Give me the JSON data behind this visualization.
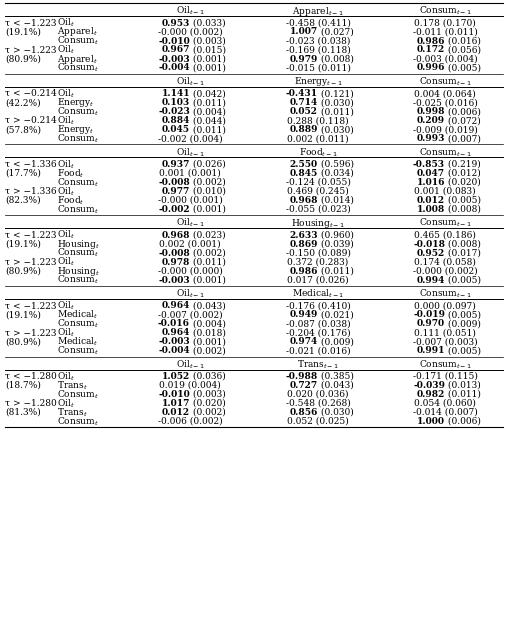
{
  "sections": [
    {
      "col_headers": [
        "Oil$_{t-1}$",
        "Apparel$_{t-1}$",
        "Consum$_{t-1}$"
      ],
      "regimes": [
        {
          "tau": "τ < −1.223",
          "pct": "(19.1%)",
          "rows": [
            {
              "dep": "Oil$_t$",
              "c1": "0.953",
              "s1": "(0.033)",
              "b1": true,
              "c2": "-0.458",
              "s2": "(0.411)",
              "b2": false,
              "c3": "0.178",
              "s3": "(0.170)",
              "b3": false
            },
            {
              "dep": "Apparel$_t$",
              "c1": "-0.000",
              "s1": "(0.002)",
              "b1": false,
              "c2": "1.007",
              "s2": "(0.027)",
              "b2": true,
              "c3": "-0.011",
              "s3": "(0.011)",
              "b3": false
            },
            {
              "dep": "Consum$_t$",
              "c1": "-0.010",
              "s1": "(0.003)",
              "b1": true,
              "c2": "-0.023",
              "s2": "(0.038)",
              "b2": false,
              "c3": "0.986",
              "s3": "(0.016)",
              "b3": true
            }
          ]
        },
        {
          "tau": "τ > −1.223",
          "pct": "(80.9%)",
          "rows": [
            {
              "dep": "Oil$_t$",
              "c1": "0.967",
              "s1": "(0.015)",
              "b1": true,
              "c2": "-0.169",
              "s2": "(0.118)",
              "b2": false,
              "c3": "0.172",
              "s3": "(0.056)",
              "b3": true
            },
            {
              "dep": "Apparel$_t$",
              "c1": "-0.003",
              "s1": "(0.001)",
              "b1": true,
              "c2": "0.979",
              "s2": "(0.008)",
              "b2": true,
              "c3": "-0.003",
              "s3": "(0.004)",
              "b3": false
            },
            {
              "dep": "Consum$_t$",
              "c1": "-0.004",
              "s1": "(0.001)",
              "b1": true,
              "c2": "-0.015",
              "s2": "(0.011)",
              "b2": false,
              "c3": "0.996",
              "s3": "(0.005)",
              "b3": true
            }
          ]
        }
      ]
    },
    {
      "col_headers": [
        "Oil$_{t-1}$",
        "Energy$_{t-1}$",
        "Consum$_{t-1}$"
      ],
      "regimes": [
        {
          "tau": "τ < −0.214",
          "pct": "(42.2%)",
          "rows": [
            {
              "dep": "Oil$_t$",
              "c1": "1.141",
              "s1": "(0.042)",
              "b1": true,
              "c2": "-0.431",
              "s2": "(0.121)",
              "b2": true,
              "c3": "0.004",
              "s3": "(0.064)",
              "b3": false
            },
            {
              "dep": "Energy$_t$",
              "c1": "0.103",
              "s1": "(0.011)",
              "b1": true,
              "c2": "0.714",
              "s2": "(0.030)",
              "b2": true,
              "c3": "-0.025",
              "s3": "(0.016)",
              "b3": false
            },
            {
              "dep": "Consum$_t$",
              "c1": "-0.023",
              "s1": "(0.004)",
              "b1": true,
              "c2": "0.052",
              "s2": "(0.011)",
              "b2": true,
              "c3": "0.998",
              "s3": "(0.006)",
              "b3": true
            }
          ]
        },
        {
          "tau": "τ > −0.214",
          "pct": "(57.8%)",
          "rows": [
            {
              "dep": "Oil$_t$",
              "c1": "0.884",
              "s1": "(0.044)",
              "b1": true,
              "c2": "0.288",
              "s2": "(0.118)",
              "b2": false,
              "c3": "0.209",
              "s3": "(0.072)",
              "b3": true
            },
            {
              "dep": "Energy$_t$",
              "c1": "0.045",
              "s1": "(0.011)",
              "b1": true,
              "c2": "0.889",
              "s2": "(0.030)",
              "b2": true,
              "c3": "-0.009",
              "s3": "(0.019)",
              "b3": false
            },
            {
              "dep": "Consum$_t$",
              "c1": "-0.002",
              "s1": "(0.004)",
              "b1": false,
              "c2": "0.002",
              "s2": "(0.011)",
              "b2": false,
              "c3": "0.993",
              "s3": "(0.007)",
              "b3": true
            }
          ]
        }
      ]
    },
    {
      "col_headers": [
        "Oil$_{t-1}$",
        "Food$_{t-1}$",
        "Consum$_{t-1}$"
      ],
      "regimes": [
        {
          "tau": "τ < −1.336",
          "pct": "(17.7%)",
          "rows": [
            {
              "dep": "Oil$_t$",
              "c1": "0.937",
              "s1": "(0.026)",
              "b1": true,
              "c2": "2.550",
              "s2": "(0.596)",
              "b2": true,
              "c3": "-0.853",
              "s3": "(0.219)",
              "b3": true
            },
            {
              "dep": "Food$_t$",
              "c1": "0.001",
              "s1": "(0.001)",
              "b1": false,
              "c2": "0.845",
              "s2": "(0.034)",
              "b2": true,
              "c3": "0.047",
              "s3": "(0.012)",
              "b3": true
            },
            {
              "dep": "Consum$_t$",
              "c1": "-0.008",
              "s1": "(0.002)",
              "b1": true,
              "c2": "-0.124",
              "s2": "(0.055)",
              "b2": false,
              "c3": "1.016",
              "s3": "(0.020)",
              "b3": true
            }
          ]
        },
        {
          "tau": "τ > −1.336",
          "pct": "(82.3%)",
          "rows": [
            {
              "dep": "Oil$_t$",
              "c1": "0.977",
              "s1": "(0.010)",
              "b1": true,
              "c2": "0.469",
              "s2": "(0.245)",
              "b2": false,
              "c3": "0.001",
              "s3": "(0.083)",
              "b3": false
            },
            {
              "dep": "Food$_t$",
              "c1": "-0.000",
              "s1": "(0.001)",
              "b1": false,
              "c2": "0.968",
              "s2": "(0.014)",
              "b2": true,
              "c3": "0.012",
              "s3": "(0.005)",
              "b3": true
            },
            {
              "dep": "Consum$_t$",
              "c1": "-0.002",
              "s1": "(0.001)",
              "b1": true,
              "c2": "-0.055",
              "s2": "(0.023)",
              "b2": false,
              "c3": "1.008",
              "s3": "(0.008)",
              "b3": true
            }
          ]
        }
      ]
    },
    {
      "col_headers": [
        "Oil$_{t-1}$",
        "Housing$_{t-1}$",
        "Consum$_{t-1}$"
      ],
      "regimes": [
        {
          "tau": "τ < −1.223",
          "pct": "(19.1%)",
          "rows": [
            {
              "dep": "Oil$_t$",
              "c1": "0.968",
              "s1": "(0.023)",
              "b1": true,
              "c2": "2.633",
              "s2": "(0.960)",
              "b2": true,
              "c3": "0.465",
              "s3": "(0.186)",
              "b3": false
            },
            {
              "dep": "Housing$_t$",
              "c1": "0.002",
              "s1": "(0.001)",
              "b1": false,
              "c2": "0.869",
              "s2": "(0.039)",
              "b2": true,
              "c3": "-0.018",
              "s3": "(0.008)",
              "b3": true
            },
            {
              "dep": "Consum$_t$",
              "c1": "-0.008",
              "s1": "(0.002)",
              "b1": true,
              "c2": "-0.150",
              "s2": "(0.089)",
              "b2": false,
              "c3": "0.952",
              "s3": "(0.017)",
              "b3": true
            }
          ]
        },
        {
          "tau": "τ > −1.223",
          "pct": "(80.9%)",
          "rows": [
            {
              "dep": "Oil$_t$",
              "c1": "0.978",
              "s1": "(0.011)",
              "b1": true,
              "c2": "0.372",
              "s2": "(0.283)",
              "b2": false,
              "c3": "0.174",
              "s3": "(0.058)",
              "b3": false
            },
            {
              "dep": "Housing$_t$",
              "c1": "-0.000",
              "s1": "(0.000)",
              "b1": false,
              "c2": "0.986",
              "s2": "(0.011)",
              "b2": true,
              "c3": "-0.000",
              "s3": "(0.002)",
              "b3": false
            },
            {
              "dep": "Consum$_t$",
              "c1": "-0.003",
              "s1": "(0.001)",
              "b1": true,
              "c2": "0.017",
              "s2": "(0.026)",
              "b2": false,
              "c3": "0.994",
              "s3": "(0.005)",
              "b3": true
            }
          ]
        }
      ]
    },
    {
      "col_headers": [
        "Oil$_{t-1}$",
        "Medical$_{t-1}$",
        "Consum$_{t-1}$"
      ],
      "regimes": [
        {
          "tau": "τ < −1.223",
          "pct": "(19.1%)",
          "rows": [
            {
              "dep": "Oil$_t$",
              "c1": "0.964",
              "s1": "(0.043)",
              "b1": true,
              "c2": "-0.176",
              "s2": "(0.410)",
              "b2": false,
              "c3": "0.000",
              "s3": "(0.097)",
              "b3": false
            },
            {
              "dep": "Medical$_t$",
              "c1": "-0.007",
              "s1": "(0.002)",
              "b1": false,
              "c2": "0.949",
              "s2": "(0.021)",
              "b2": true,
              "c3": "-0.019",
              "s3": "(0.005)",
              "b3": true
            },
            {
              "dep": "Consum$_t$",
              "c1": "-0.016",
              "s1": "(0.004)",
              "b1": true,
              "c2": "-0.087",
              "s2": "(0.038)",
              "b2": false,
              "c3": "0.970",
              "s3": "(0.009)",
              "b3": true
            }
          ]
        },
        {
          "tau": "τ > −1.223",
          "pct": "(80.9%)",
          "rows": [
            {
              "dep": "Oil$_t$",
              "c1": "0.964",
              "s1": "(0.018)",
              "b1": true,
              "c2": "-0.204",
              "s2": "(0.176)",
              "b2": false,
              "c3": "0.111",
              "s3": "(0.051)",
              "b3": false
            },
            {
              "dep": "Medical$_t$",
              "c1": "-0.003",
              "s1": "(0.001)",
              "b1": true,
              "c2": "0.974",
              "s2": "(0.009)",
              "b2": true,
              "c3": "-0.007",
              "s3": "(0.003)",
              "b3": false
            },
            {
              "dep": "Consum$_t$",
              "c1": "-0.004",
              "s1": "(0.002)",
              "b1": true,
              "c2": "-0.021",
              "s2": "(0.016)",
              "b2": false,
              "c3": "0.991",
              "s3": "(0.005)",
              "b3": true
            }
          ]
        }
      ]
    },
    {
      "col_headers": [
        "Oil$_{t-1}$",
        "Trans$_{t-1}$",
        "Consum$_{t-1}$"
      ],
      "regimes": [
        {
          "tau": "τ < −1.280",
          "pct": "(18.7%)",
          "rows": [
            {
              "dep": "Oil$_t$",
              "c1": "1.052",
              "s1": "(0.036)",
              "b1": true,
              "c2": "-0.988",
              "s2": "(0.385)",
              "b2": true,
              "c3": "-0.171",
              "s3": "(0.115)",
              "b3": false
            },
            {
              "dep": "Trans$_t$",
              "c1": "0.019",
              "s1": "(0.004)",
              "b1": false,
              "c2": "0.727",
              "s2": "(0.043)",
              "b2": true,
              "c3": "-0.039",
              "s3": "(0.013)",
              "b3": true
            },
            {
              "dep": "Consum$_t$",
              "c1": "-0.010",
              "s1": "(0.003)",
              "b1": true,
              "c2": "0.020",
              "s2": "(0.036)",
              "b2": false,
              "c3": "0.982",
              "s3": "(0.011)",
              "b3": true
            }
          ]
        },
        {
          "tau": "τ > −1.280",
          "pct": "(81.3%)",
          "rows": [
            {
              "dep": "Oil$_t$",
              "c1": "1.017",
              "s1": "(0.020)",
              "b1": true,
              "c2": "-0.548",
              "s2": "(0.268)",
              "b2": false,
              "c3": "0.054",
              "s3": "(0.060)",
              "b3": false
            },
            {
              "dep": "Trans$_t$",
              "c1": "0.012",
              "s1": "(0.002)",
              "b1": true,
              "c2": "0.856",
              "s2": "(0.030)",
              "b2": true,
              "c3": "-0.014",
              "s3": "(0.007)",
              "b3": false
            },
            {
              "dep": "Consum$_t$",
              "c1": "-0.006",
              "s1": "(0.002)",
              "b1": false,
              "c2": "0.052",
              "s2": "(0.025)",
              "b2": false,
              "c3": "1.000",
              "s3": "(0.006)",
              "b3": true
            }
          ]
        }
      ]
    }
  ]
}
